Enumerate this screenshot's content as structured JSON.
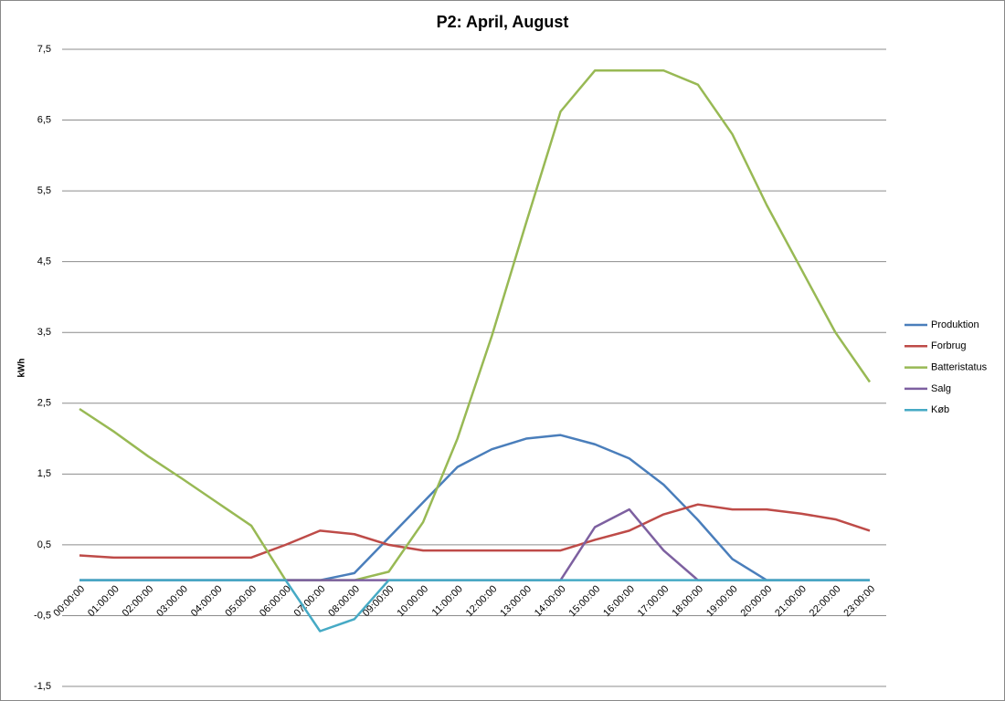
{
  "chart_data": {
    "type": "line",
    "title": "P2: April, August",
    "y_label": "kWh",
    "categories": [
      "00:00:00",
      "01:00:00",
      "02:00:00",
      "03:00:00",
      "04:00:00",
      "05:00:00",
      "06:00:00",
      "07:00:00",
      "08:00:00",
      "09:00:00",
      "10:00:00",
      "11:00:00",
      "12:00:00",
      "13:00:00",
      "14:00:00",
      "15:00:00",
      "16:00:00",
      "17:00:00",
      "18:00:00",
      "19:00:00",
      "20:00:00",
      "21:00:00",
      "22:00:00",
      "23:00:00"
    ],
    "series": [
      {
        "name": "Produktion",
        "color": "#4a7ebb",
        "values": [
          0,
          0,
          0,
          0,
          0,
          0,
          0,
          0,
          0.1,
          0.6,
          1.1,
          1.6,
          1.85,
          2.0,
          2.05,
          1.92,
          1.72,
          1.35,
          0.85,
          0.3,
          0,
          0,
          0,
          0
        ]
      },
      {
        "name": "Forbrug",
        "color": "#be4b48",
        "values": [
          0.35,
          0.32,
          0.32,
          0.32,
          0.32,
          0.32,
          0.5,
          0.7,
          0.65,
          0.5,
          0.42,
          0.42,
          0.42,
          0.42,
          0.42,
          0.57,
          0.7,
          0.93,
          1.07,
          1.0,
          1.0,
          0.94,
          0.86,
          0.7
        ]
      },
      {
        "name": "Batteristatus",
        "color": "#98b954",
        "values": [
          2.42,
          2.1,
          1.75,
          1.43,
          1.1,
          0.77,
          0,
          0,
          0,
          0.12,
          0.82,
          2.0,
          3.45,
          5.05,
          6.62,
          7.2,
          7.2,
          7.2,
          7.0,
          6.3,
          5.3,
          4.4,
          3.5,
          2.8
        ]
      },
      {
        "name": "Salg",
        "color": "#7d60a0",
        "values": [
          0,
          0,
          0,
          0,
          0,
          0,
          0,
          0,
          0,
          0,
          0,
          0,
          0,
          0,
          0,
          0.75,
          1.0,
          0.42,
          0,
          0,
          0,
          0,
          0,
          0
        ]
      },
      {
        "name": "Køb",
        "color": "#46aac5",
        "values": [
          0,
          0,
          0,
          0,
          0,
          0,
          0,
          -0.72,
          -0.55,
          0,
          0,
          0,
          0,
          0,
          0,
          0,
          0,
          0,
          0,
          0,
          0,
          0,
          0,
          0
        ]
      }
    ],
    "ylim": [
      -1.5,
      7.5
    ],
    "yticks": [
      {
        "value": -1.5,
        "label": "-1,5"
      },
      {
        "value": -0.5,
        "label": "-0,5"
      },
      {
        "value": 0.5,
        "label": "0,5"
      },
      {
        "value": 1.5,
        "label": "1,5"
      },
      {
        "value": 2.5,
        "label": "2,5"
      },
      {
        "value": 3.5,
        "label": "3,5"
      },
      {
        "value": 4.5,
        "label": "4,5"
      },
      {
        "value": 5.5,
        "label": "5,5"
      },
      {
        "value": 6.5,
        "label": "6,5"
      },
      {
        "value": 7.5,
        "label": "7,5"
      }
    ],
    "grid": true,
    "legend": "right"
  }
}
